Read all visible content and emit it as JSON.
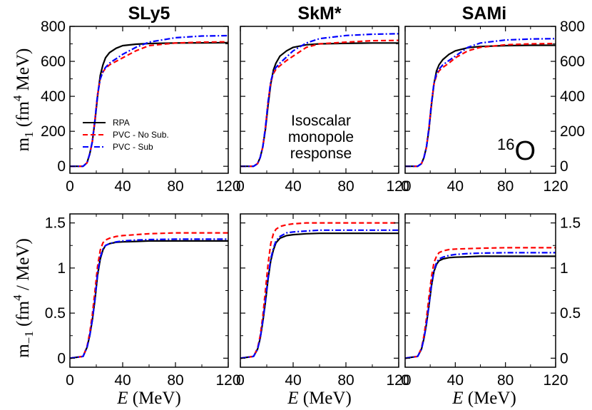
{
  "chart_data": {
    "type": "line",
    "titles": [
      "SLy5",
      "SkM*",
      "SAMi"
    ],
    "xlabel": {
      "italic": "E",
      "rest": " (MeV)"
    },
    "ylabel_top": {
      "base": "m",
      "sub": "1",
      "open": " (fm",
      "sup": "4",
      "close": " MeV)"
    },
    "ylabel_bottom": {
      "base": "m",
      "sub": "−1",
      "open": " (fm",
      "sup": "4",
      "close": " / MeV)"
    },
    "xlim": [
      0,
      120
    ],
    "xticks": [
      0,
      40,
      80,
      120
    ],
    "top_ylim": [
      -40,
      800
    ],
    "top_yticks": [
      0,
      200,
      400,
      600,
      800
    ],
    "bottom_ylim": [
      -0.1,
      1.6
    ],
    "bottom_yticks": [
      0,
      0.5,
      1,
      1.5
    ],
    "bottom_ytick_labels": [
      "0",
      "0.5",
      "1",
      "1.5"
    ],
    "legend": [
      {
        "name": "RPA",
        "color": "#000000",
        "style": "solid"
      },
      {
        "name": "PVC - No Sub.",
        "color": "#ff0000",
        "style": "dashed"
      },
      {
        "name": "PVC - Sub",
        "color": "#0000ff",
        "style": "dashdot"
      }
    ],
    "annotation_lines": [
      "Isoscalar",
      "monopole",
      "response"
    ],
    "nucleus": {
      "mass": "16",
      "symbol": "O"
    },
    "colors": {
      "RPA": "#000000",
      "NoSub": "#ff0000",
      "Sub": "#0000ff"
    },
    "panels": [
      {
        "id": "sly5-m1",
        "series": [
          {
            "name": "RPA",
            "x": [
              0,
              10,
              13,
              15,
              17,
              19,
              21,
              23,
              25,
              27,
              30,
              35,
              40,
              50,
              60,
              80,
              100,
              120
            ],
            "y": [
              0,
              0,
              20,
              70,
              140,
              260,
              400,
              520,
              580,
              620,
              650,
              675,
              690,
              698,
              702,
              705,
              706,
              707
            ]
          },
          {
            "name": "PVC - No Sub.",
            "x": [
              0,
              10,
              13,
              15,
              17,
              19,
              21,
              23,
              25,
              27,
              30,
              35,
              40,
              50,
              60,
              80,
              100,
              120
            ],
            "y": [
              0,
              0,
              20,
              70,
              140,
              270,
              410,
              500,
              540,
              560,
              580,
              600,
              620,
              660,
              690,
              705,
              710,
              712
            ]
          },
          {
            "name": "PVC - Sub",
            "x": [
              0,
              10,
              13,
              15,
              17,
              19,
              21,
              23,
              25,
              27,
              30,
              35,
              40,
              50,
              60,
              80,
              100,
              120
            ],
            "y": [
              0,
              0,
              20,
              70,
              140,
              270,
              410,
              500,
              540,
              565,
              590,
              615,
              640,
              680,
              710,
              735,
              745,
              747
            ]
          }
        ]
      },
      {
        "id": "skm-m1",
        "series": [
          {
            "name": "RPA",
            "x": [
              0,
              10,
              13,
              15,
              17,
              19,
              21,
              23,
              25,
              27,
              30,
              35,
              40,
              50,
              60,
              80,
              100,
              120
            ],
            "y": [
              0,
              0,
              15,
              50,
              110,
              210,
              350,
              470,
              550,
              590,
              630,
              660,
              680,
              695,
              700,
              703,
              705,
              705
            ]
          },
          {
            "name": "PVC - No Sub.",
            "x": [
              0,
              10,
              13,
              15,
              17,
              19,
              21,
              23,
              25,
              27,
              30,
              35,
              40,
              50,
              60,
              80,
              100,
              120
            ],
            "y": [
              0,
              0,
              15,
              50,
              110,
              220,
              370,
              480,
              530,
              555,
              575,
              605,
              630,
              680,
              700,
              710,
              718,
              720
            ]
          },
          {
            "name": "PVC - Sub",
            "x": [
              0,
              10,
              13,
              15,
              17,
              19,
              21,
              23,
              25,
              27,
              30,
              35,
              40,
              50,
              60,
              80,
              100,
              120
            ],
            "y": [
              0,
              0,
              15,
              50,
              110,
              220,
              370,
              485,
              540,
              565,
              590,
              625,
              660,
              705,
              730,
              748,
              755,
              758
            ]
          }
        ]
      },
      {
        "id": "sami-m1",
        "series": [
          {
            "name": "RPA",
            "x": [
              0,
              10,
              13,
              15,
              17,
              19,
              21,
              23,
              25,
              27,
              30,
              35,
              40,
              50,
              60,
              80,
              100,
              120
            ],
            "y": [
              0,
              0,
              15,
              50,
              110,
              210,
              350,
              470,
              545,
              580,
              610,
              640,
              660,
              678,
              685,
              690,
              692,
              692
            ]
          },
          {
            "name": "PVC - No Sub.",
            "x": [
              0,
              10,
              13,
              15,
              17,
              19,
              21,
              23,
              25,
              27,
              30,
              35,
              40,
              50,
              60,
              80,
              100,
              120
            ],
            "y": [
              0,
              0,
              15,
              50,
              110,
              220,
              360,
              470,
              520,
              545,
              565,
              590,
              620,
              660,
              680,
              695,
              700,
              702
            ]
          },
          {
            "name": "PVC - Sub",
            "x": [
              0,
              10,
              13,
              15,
              17,
              19,
              21,
              23,
              25,
              27,
              30,
              35,
              40,
              50,
              60,
              80,
              100,
              120
            ],
            "y": [
              0,
              0,
              15,
              50,
              110,
              220,
              360,
              475,
              530,
              555,
              580,
              605,
              630,
              680,
              705,
              722,
              728,
              730
            ]
          }
        ]
      },
      {
        "id": "sly5-m-1",
        "series": [
          {
            "name": "RPA",
            "x": [
              0,
              10,
              13,
              15,
              17,
              19,
              21,
              23,
              25,
              27,
              30,
              35,
              40,
              50,
              60,
              80,
              100,
              120
            ],
            "y": [
              0,
              0.02,
              0.12,
              0.25,
              0.42,
              0.65,
              0.92,
              1.1,
              1.2,
              1.25,
              1.27,
              1.285,
              1.29,
              1.295,
              1.3,
              1.3,
              1.3,
              1.3
            ]
          },
          {
            "name": "PVC - No Sub.",
            "x": [
              0,
              10,
              13,
              15,
              17,
              19,
              21,
              23,
              25,
              27,
              30,
              35,
              40,
              50,
              60,
              80,
              100,
              120
            ],
            "y": [
              0,
              0.02,
              0.13,
              0.28,
              0.48,
              0.75,
              1.02,
              1.2,
              1.28,
              1.31,
              1.33,
              1.35,
              1.36,
              1.37,
              1.38,
              1.39,
              1.39,
              1.39
            ]
          },
          {
            "name": "PVC - Sub",
            "x": [
              0,
              10,
              13,
              15,
              17,
              19,
              21,
              23,
              25,
              27,
              30,
              35,
              40,
              50,
              60,
              80,
              100,
              120
            ],
            "y": [
              0,
              0.02,
              0.12,
              0.25,
              0.42,
              0.66,
              0.94,
              1.12,
              1.21,
              1.25,
              1.27,
              1.29,
              1.3,
              1.31,
              1.315,
              1.32,
              1.32,
              1.32
            ]
          }
        ]
      },
      {
        "id": "skm-m-1",
        "series": [
          {
            "name": "RPA",
            "x": [
              0,
              10,
              13,
              15,
              17,
              19,
              21,
              23,
              25,
              27,
              30,
              35,
              40,
              50,
              60,
              80,
              100,
              120
            ],
            "y": [
              0,
              0.02,
              0.1,
              0.22,
              0.4,
              0.62,
              0.88,
              1.08,
              1.2,
              1.28,
              1.33,
              1.36,
              1.37,
              1.38,
              1.385,
              1.385,
              1.385,
              1.385
            ]
          },
          {
            "name": "PVC - No Sub.",
            "x": [
              0,
              10,
              13,
              15,
              17,
              19,
              21,
              23,
              25,
              27,
              30,
              35,
              40,
              50,
              60,
              80,
              100,
              120
            ],
            "y": [
              0,
              0.02,
              0.11,
              0.25,
              0.46,
              0.75,
              1.05,
              1.27,
              1.38,
              1.43,
              1.46,
              1.48,
              1.49,
              1.5,
              1.5,
              1.5,
              1.5,
              1.5
            ]
          },
          {
            "name": "PVC - Sub",
            "x": [
              0,
              10,
              13,
              15,
              17,
              19,
              21,
              23,
              25,
              27,
              30,
              35,
              40,
              50,
              60,
              80,
              100,
              120
            ],
            "y": [
              0,
              0.02,
              0.1,
              0.22,
              0.41,
              0.64,
              0.9,
              1.1,
              1.22,
              1.3,
              1.35,
              1.39,
              1.4,
              1.41,
              1.42,
              1.42,
              1.42,
              1.42
            ]
          }
        ]
      },
      {
        "id": "sami-m-1",
        "series": [
          {
            "name": "RPA",
            "x": [
              0,
              10,
              13,
              15,
              17,
              19,
              21,
              23,
              25,
              27,
              30,
              35,
              40,
              50,
              60,
              80,
              100,
              120
            ],
            "y": [
              0,
              0.02,
              0.1,
              0.22,
              0.38,
              0.58,
              0.8,
              0.96,
              1.04,
              1.08,
              1.1,
              1.115,
              1.12,
              1.125,
              1.13,
              1.13,
              1.13,
              1.13
            ]
          },
          {
            "name": "PVC - No Sub.",
            "x": [
              0,
              10,
              13,
              15,
              17,
              19,
              21,
              23,
              25,
              27,
              30,
              35,
              40,
              50,
              60,
              80,
              100,
              120
            ],
            "y": [
              0,
              0.02,
              0.11,
              0.25,
              0.44,
              0.68,
              0.9,
              1.06,
              1.13,
              1.17,
              1.19,
              1.205,
              1.21,
              1.215,
              1.22,
              1.225,
              1.225,
              1.225
            ]
          },
          {
            "name": "PVC - Sub",
            "x": [
              0,
              10,
              13,
              15,
              17,
              19,
              21,
              23,
              25,
              27,
              30,
              35,
              40,
              50,
              60,
              80,
              100,
              120
            ],
            "y": [
              0,
              0.02,
              0.1,
              0.22,
              0.38,
              0.59,
              0.81,
              0.97,
              1.06,
              1.1,
              1.12,
              1.14,
              1.15,
              1.16,
              1.165,
              1.17,
              1.17,
              1.17
            ]
          }
        ]
      }
    ]
  }
}
